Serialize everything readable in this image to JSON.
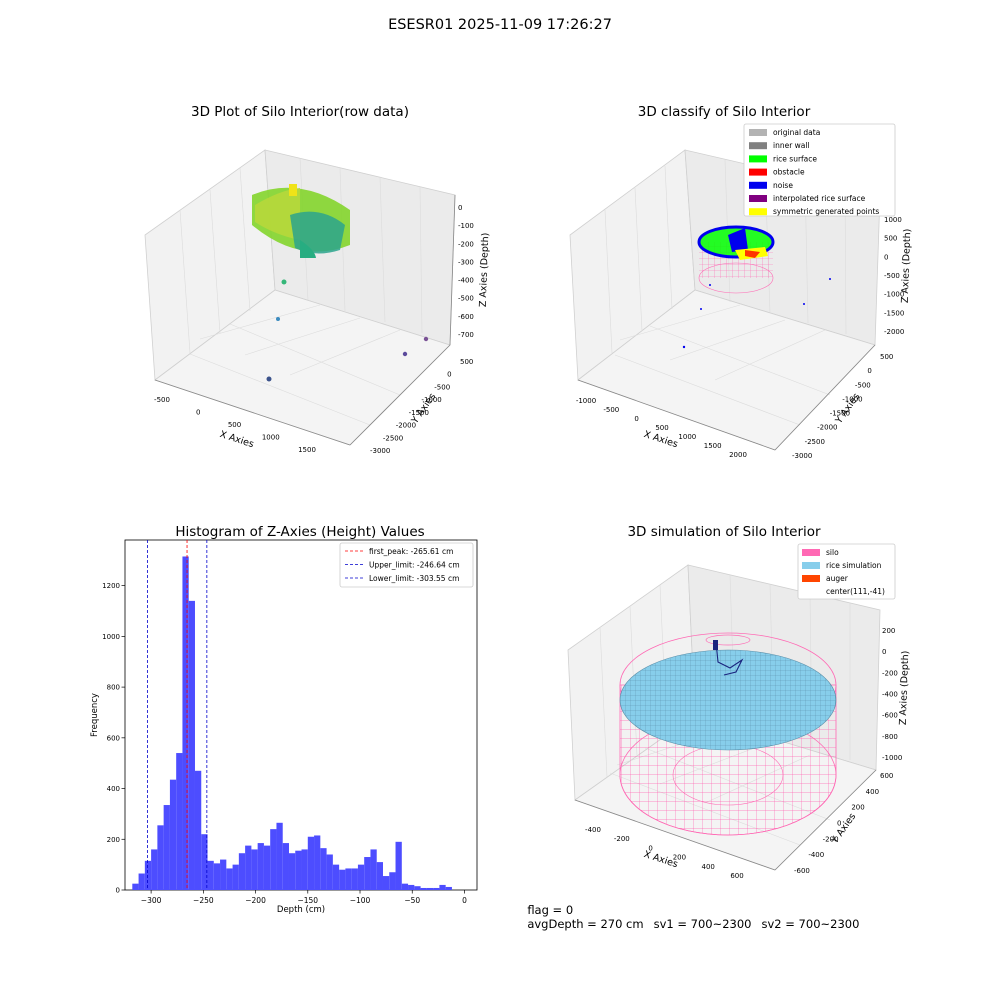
{
  "figure": {
    "title": "ESESR01 2025-11-09 17:26:27"
  },
  "panel1": {
    "title": "3D Plot of Silo Interior(row data)",
    "xlabel": "X Axies",
    "ylabel": "Y Axies",
    "zlabel": "Z Axies (Depth)",
    "xticks": [
      "-500",
      "0",
      "500",
      "1000",
      "1500"
    ],
    "yticks": [
      "500",
      "0",
      "-500",
      "-1000",
      "-1500",
      "-2000",
      "-2500",
      "-3000"
    ],
    "zticks": [
      "0",
      "-100",
      "-200",
      "-300",
      "-400",
      "-500",
      "-600",
      "-700"
    ]
  },
  "panel2": {
    "title": "3D classify of Silo Interior",
    "xlabel": "X Axies",
    "ylabel": "Y Axies",
    "zlabel": "Z Axies (Depth)",
    "xticks": [
      "-1000",
      "-500",
      "0",
      "500",
      "1000",
      "1500",
      "2000"
    ],
    "yticks": [
      "500",
      "0",
      "-500",
      "-1000",
      "-1500",
      "-2000",
      "-2500",
      "-3000"
    ],
    "zticks": [
      "1000",
      "500",
      "0",
      "-500",
      "-1000",
      "-1500",
      "-2000"
    ],
    "legend": [
      {
        "label": "original data",
        "color": "#b3b3b3"
      },
      {
        "label": "inner wall",
        "color": "#808080"
      },
      {
        "label": "rice surface",
        "color": "#00ff00"
      },
      {
        "label": "obstacle",
        "color": "#ff0000"
      },
      {
        "label": "noise",
        "color": "#0000ee"
      },
      {
        "label": "interpolated rice surface",
        "color": "#800080"
      },
      {
        "label": "symmetric generated points",
        "color": "#ffff00"
      }
    ]
  },
  "chart_data": {
    "type": "bar",
    "title": "Histogram of Z-Axies (Height) Values",
    "xlabel": "Depth (cm)",
    "ylabel": "Frequency",
    "xlim": [
      -325,
      12
    ],
    "ylim": [
      0,
      1380
    ],
    "xticks": [
      -300,
      -250,
      -200,
      -150,
      -100,
      -50,
      0
    ],
    "yticks": [
      0,
      200,
      400,
      600,
      800,
      1000,
      1200
    ],
    "bin_width": 6,
    "bin_starts": [
      -318,
      -312,
      -306,
      -300,
      -294,
      -288,
      -282,
      -276,
      -270,
      -264,
      -258,
      -252,
      -246,
      -240,
      -234,
      -228,
      -222,
      -216,
      -210,
      -204,
      -198,
      -192,
      -186,
      -180,
      -174,
      -168,
      -162,
      -156,
      -150,
      -144,
      -138,
      -132,
      -126,
      -120,
      -114,
      -108,
      -102,
      -96,
      -90,
      -84,
      -78,
      -72,
      -66,
      -60,
      -54,
      -48,
      -42,
      -36,
      -30,
      -24,
      -18,
      -12,
      -6
    ],
    "values": [
      25,
      65,
      115,
      160,
      255,
      335,
      435,
      540,
      1315,
      1140,
      470,
      220,
      115,
      105,
      120,
      85,
      100,
      145,
      175,
      160,
      185,
      175,
      240,
      265,
      185,
      145,
      155,
      160,
      210,
      215,
      165,
      140,
      100,
      80,
      85,
      85,
      100,
      130,
      160,
      110,
      55,
      70,
      190,
      25,
      20,
      15,
      8,
      8,
      8,
      20,
      12,
      0,
      0
    ],
    "bar_color": "#4d4dff",
    "lines": [
      {
        "label": "first_peak: -265.61 cm",
        "x": -265.61,
        "color": "#ff0000"
      },
      {
        "label": "Upper_limit: -246.64 cm",
        "x": -246.64,
        "color": "#0000cc"
      },
      {
        "label": "Lower_limit: -303.55 cm",
        "x": -303.55,
        "color": "#0000cc"
      }
    ],
    "legend": "top-right"
  },
  "panel4": {
    "title": "3D simulation of Silo Interior",
    "xlabel": "X Axies",
    "ylabel": "Y Axies",
    "zlabel": "Z Axies (Depth)",
    "xticks": [
      "-400",
      "-200",
      "0",
      "200",
      "400",
      "600"
    ],
    "yticks": [
      "600",
      "400",
      "200",
      "0",
      "-200",
      "-400",
      "-600"
    ],
    "zticks": [
      "200",
      "0",
      "-200",
      "-400",
      "-600",
      "-800",
      "-1000"
    ],
    "legend": [
      {
        "label": "silo",
        "color": "#ff69b4"
      },
      {
        "label": "rice simulation",
        "color": "#87ceeb"
      },
      {
        "label": "auger",
        "color": "#ff4500"
      },
      {
        "label": "center(111,-41)",
        "color": ""
      }
    ]
  },
  "footer": {
    "flag": "flag = 0",
    "avg": "avgDepth = 270 cm",
    "sv1": "sv1 = 700~2300",
    "sv2": "sv2 = 700~2300"
  }
}
